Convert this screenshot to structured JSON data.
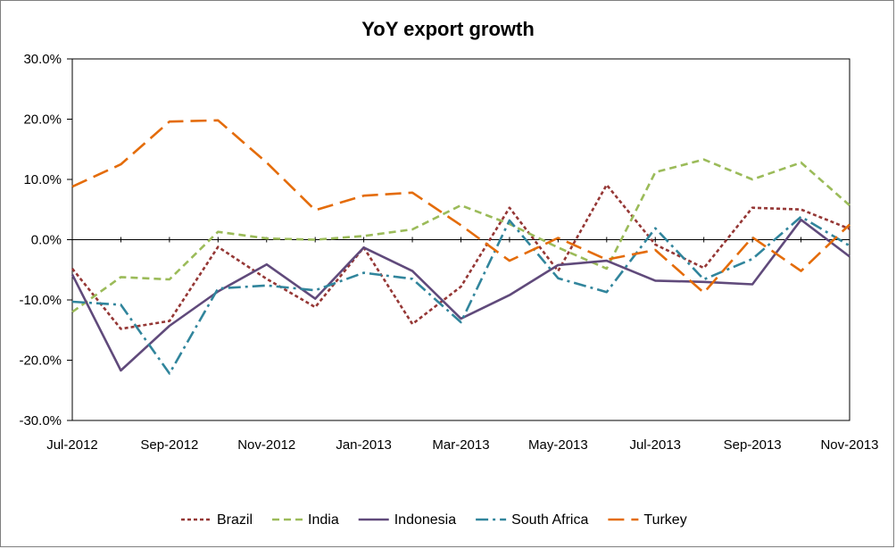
{
  "chart_data": {
    "type": "line",
    "title": "YoY export growth",
    "xlabel": "",
    "ylabel": "",
    "ylim": [
      -0.3,
      0.3
    ],
    "y_ticks": [
      0.3,
      0.2,
      0.1,
      0.0,
      -0.1,
      -0.2,
      -0.3
    ],
    "y_tick_labels": [
      "30.0%",
      "20.0%",
      "10.0%",
      "0.0%",
      "-10.0%",
      "-20.0%",
      "-30.0%"
    ],
    "x": [
      "Jul-2012",
      "Aug-2012",
      "Sep-2012",
      "Oct-2012",
      "Nov-2012",
      "Dec-2012",
      "Jan-2013",
      "Feb-2013",
      "Mar-2013",
      "Apr-2013",
      "May-2013",
      "Jun-2013",
      "Jul-2013",
      "Aug-2013",
      "Sep-2013",
      "Oct-2013",
      "Nov-2013"
    ],
    "x_tick_labels": [
      "Jul-2012",
      "Sep-2012",
      "Nov-2012",
      "Jan-2013",
      "Mar-2013",
      "May-2013",
      "Jul-2013",
      "Sep-2013",
      "Nov-2013"
    ],
    "x_tick_every": 2,
    "grid": false,
    "legend_position": "bottom",
    "series": [
      {
        "name": "Brazil",
        "color": "#953735",
        "dash": "dot",
        "values": [
          -0.048,
          -0.148,
          -0.135,
          -0.012,
          -0.065,
          -0.112,
          -0.013,
          -0.14,
          -0.078,
          0.053,
          -0.052,
          0.091,
          -0.008,
          -0.047,
          0.053,
          0.05,
          0.018
        ]
      },
      {
        "name": "India",
        "color": "#9BBB59",
        "dash": "dash",
        "values": [
          -0.12,
          -0.062,
          -0.066,
          0.013,
          0.002,
          0.0,
          0.006,
          0.017,
          0.057,
          0.026,
          -0.013,
          -0.048,
          0.112,
          0.133,
          0.1,
          0.128,
          0.057
        ]
      },
      {
        "name": "Indonesia",
        "color": "#604A7B",
        "dash": "solid",
        "values": [
          -0.058,
          -0.217,
          -0.143,
          -0.086,
          -0.041,
          -0.098,
          -0.013,
          -0.052,
          -0.131,
          -0.092,
          -0.042,
          -0.035,
          -0.068,
          -0.07,
          -0.074,
          0.033,
          -0.028
        ]
      },
      {
        "name": "South Africa",
        "color": "#31859C",
        "dash": "dashdot",
        "values": [
          -0.103,
          -0.108,
          -0.222,
          -0.081,
          -0.076,
          -0.084,
          -0.055,
          -0.065,
          -0.137,
          0.032,
          -0.064,
          -0.087,
          0.019,
          -0.066,
          -0.032,
          0.038,
          -0.01
        ]
      },
      {
        "name": "Turkey",
        "color": "#E46C0A",
        "dash": "longdash",
        "values": [
          0.088,
          0.125,
          0.196,
          0.198,
          0.128,
          0.049,
          0.073,
          0.078,
          0.024,
          -0.035,
          0.003,
          -0.033,
          -0.017,
          -0.088,
          0.004,
          -0.052,
          0.025
        ]
      }
    ]
  }
}
